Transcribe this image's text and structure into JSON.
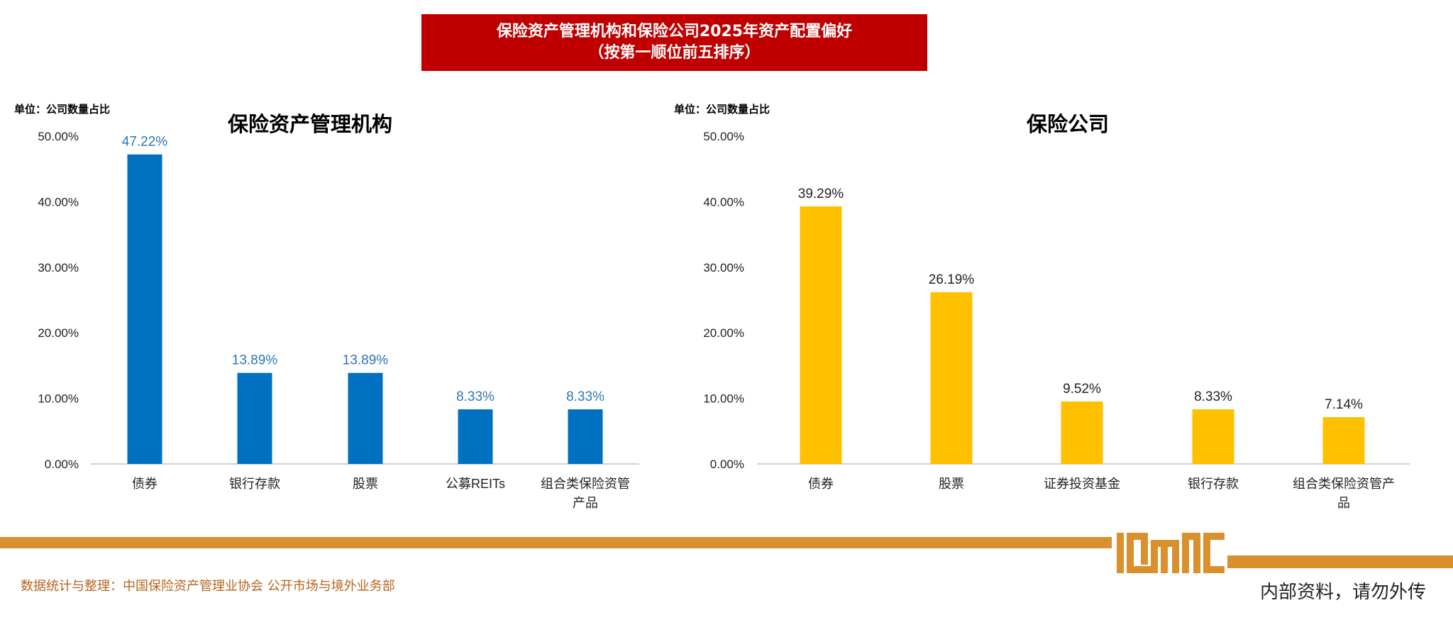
{
  "banner": {
    "line1": "保险资产管理机构和保险公司2025年资产配置偏好",
    "line2": "（按第一顺位前五排序）"
  },
  "colors": {
    "banner": "#c00000",
    "left_bars": "#0070c0",
    "left_labels": "#2e75b6",
    "right_bars": "#ffc000",
    "footer": "#d9912e"
  },
  "chart_data": [
    {
      "type": "bar",
      "title": "保险资产管理机构",
      "unit_label": "单位：公司数量占比",
      "categories": [
        "债券",
        "银行存款",
        "股票",
        "公募REITs",
        "组合类保险资管产品"
      ],
      "category_lines": [
        [
          "债券"
        ],
        [
          "银行存款"
        ],
        [
          "股票"
        ],
        [
          "公募REITs"
        ],
        [
          "组合类保险资管",
          "产品"
        ]
      ],
      "values": [
        47.22,
        13.89,
        13.89,
        8.33,
        8.33
      ],
      "data_labels": [
        "47.22%",
        "13.89%",
        "13.89%",
        "8.33%",
        "8.33%"
      ],
      "yticks": [
        "0.00%",
        "10.00%",
        "20.00%",
        "30.00%",
        "40.00%",
        "50.00%"
      ],
      "ylim": [
        0,
        50
      ],
      "grid": false
    },
    {
      "type": "bar",
      "title": "保险公司",
      "unit_label": "单位：公司数量占比",
      "categories": [
        "债券",
        "股票",
        "证券投资基金",
        "银行存款",
        "组合类保险资管产品"
      ],
      "category_lines": [
        [
          "债券"
        ],
        [
          "股票"
        ],
        [
          "证券投资基金"
        ],
        [
          "银行存款"
        ],
        [
          "组合类保险资管产",
          "品"
        ]
      ],
      "values": [
        39.29,
        26.19,
        9.52,
        8.33,
        7.14
      ],
      "data_labels": [
        "39.29%",
        "26.19%",
        "9.52%",
        "8.33%",
        "7.14%"
      ],
      "yticks": [
        "0.00%",
        "10.00%",
        "20.00%",
        "30.00%",
        "40.00%",
        "50.00%"
      ],
      "ylim": [
        0,
        50
      ],
      "grid": false
    }
  ],
  "footer": {
    "source": "数据统计与整理：中国保险资产管理业协会 公开市场与境外业务部",
    "notice": "内部资料，请勿外传",
    "logo_text": "IAMAC"
  }
}
